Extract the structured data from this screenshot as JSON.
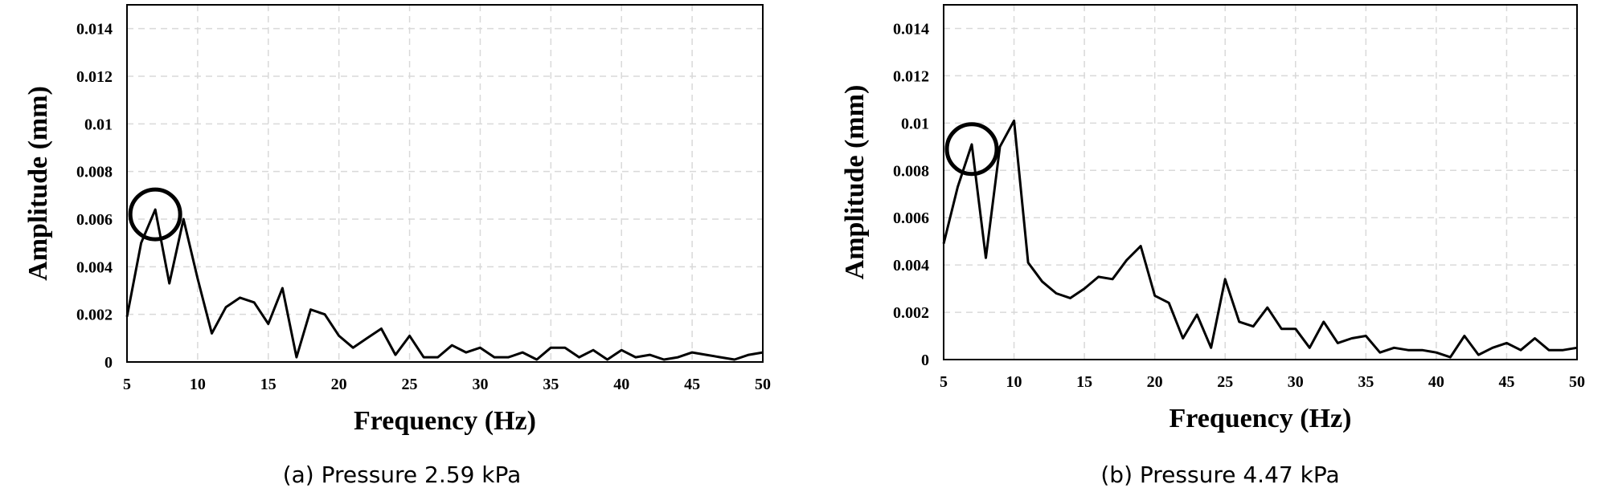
{
  "chart_data": [
    {
      "type": "line",
      "caption": "(a) Pressure 2.59 kPa",
      "xlabel": "Frequency (Hz)",
      "ylabel": "Amplitude (mm)",
      "xlim": [
        5,
        50
      ],
      "ylim": [
        0,
        0.015
      ],
      "xticks": [
        5,
        10,
        15,
        20,
        25,
        30,
        35,
        40,
        45,
        50
      ],
      "yticks": [
        0,
        0.002,
        0.004,
        0.006,
        0.008,
        0.01,
        0.012,
        0.014
      ],
      "ytick_labels": [
        "0",
        "0.002",
        "0.004",
        "0.006",
        "0.008",
        "0.01",
        "0.012",
        "0.014"
      ],
      "grid": true,
      "highlight": {
        "x": 7,
        "y": 0.0062,
        "shape": "circle"
      },
      "x": [
        5,
        6,
        7,
        8,
        9,
        10,
        11,
        12,
        13,
        14,
        15,
        16,
        17,
        18,
        19,
        20,
        21,
        22,
        23,
        24,
        25,
        26,
        27,
        28,
        29,
        30,
        31,
        32,
        33,
        34,
        35,
        36,
        37,
        38,
        39,
        40,
        41,
        42,
        43,
        44,
        45,
        46,
        47,
        48,
        49,
        50
      ],
      "values": [
        0.0019,
        0.005,
        0.0064,
        0.0033,
        0.006,
        0.0035,
        0.0012,
        0.0023,
        0.0027,
        0.0025,
        0.0016,
        0.0031,
        0.0002,
        0.0022,
        0.002,
        0.0011,
        0.0006,
        0.001,
        0.0014,
        0.0003,
        0.0011,
        0.0002,
        0.0002,
        0.0007,
        0.0004,
        0.0006,
        0.0002,
        0.0002,
        0.0004,
        0.0001,
        0.0006,
        0.0006,
        0.0002,
        0.0005,
        0.0001,
        0.0005,
        0.0002,
        0.0003,
        0.0001,
        0.0002,
        0.0004,
        0.0003,
        0.0002,
        0.0001,
        0.0003,
        0.0004
      ]
    },
    {
      "type": "line",
      "caption": "(b) Pressure 4.47 kPa",
      "xlabel": "Frequency (Hz)",
      "ylabel": "Amplitude (mm)",
      "xlim": [
        5,
        50
      ],
      "ylim": [
        0,
        0.015
      ],
      "xticks": [
        5,
        10,
        15,
        20,
        25,
        30,
        35,
        40,
        45,
        50
      ],
      "yticks": [
        0,
        0.002,
        0.004,
        0.006,
        0.008,
        0.01,
        0.012,
        0.014
      ],
      "ytick_labels": [
        "0",
        "0.002",
        "0.004",
        "0.006",
        "0.008",
        "0.01",
        "0.012",
        "0.014"
      ],
      "grid": true,
      "highlight": {
        "x": 7,
        "y": 0.0089,
        "shape": "circle"
      },
      "x": [
        5,
        6,
        7,
        8,
        9,
        10,
        11,
        12,
        13,
        14,
        15,
        16,
        17,
        18,
        19,
        20,
        21,
        22,
        23,
        24,
        25,
        26,
        27,
        28,
        29,
        30,
        31,
        32,
        33,
        34,
        35,
        36,
        37,
        38,
        39,
        40,
        41,
        42,
        43,
        44,
        45,
        46,
        47,
        48,
        49,
        50
      ],
      "values": [
        0.0049,
        0.0073,
        0.0091,
        0.0043,
        0.009,
        0.0101,
        0.0041,
        0.0033,
        0.0028,
        0.0026,
        0.003,
        0.0035,
        0.0034,
        0.0042,
        0.0048,
        0.0027,
        0.0024,
        0.0009,
        0.0019,
        0.0005,
        0.0034,
        0.0016,
        0.0014,
        0.0022,
        0.0013,
        0.0013,
        0.0005,
        0.0016,
        0.0007,
        0.0009,
        0.001,
        0.0003,
        0.0005,
        0.0004,
        0.0004,
        0.0003,
        0.0001,
        0.001,
        0.0002,
        0.0005,
        0.0007,
        0.0004,
        0.0009,
        0.0004,
        0.0004,
        0.0005
      ]
    }
  ]
}
